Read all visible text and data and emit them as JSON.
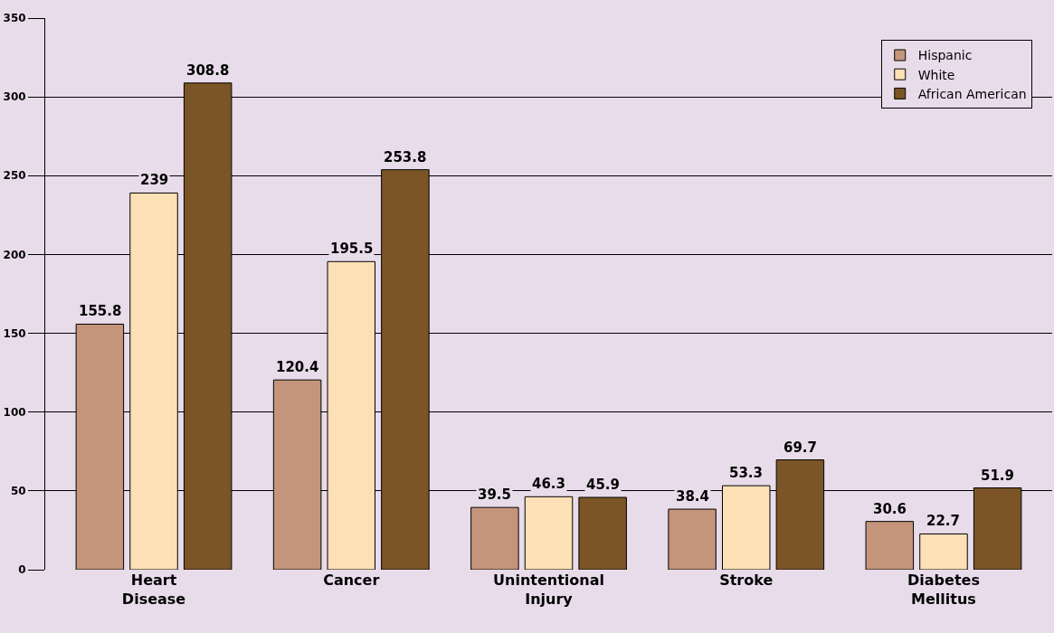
{
  "chart_data": {
    "type": "bar",
    "categories": [
      "Heart\nDisease",
      "Cancer",
      "Unintentional\nInjury",
      "Stroke",
      "Diabetes\nMellitus"
    ],
    "series": [
      {
        "name": "Hispanic",
        "color": "#c4957a",
        "values": [
          155.8,
          120.4,
          39.5,
          38.4,
          30.6
        ]
      },
      {
        "name": "White",
        "color": "#fde0b6",
        "values": [
          239,
          195.5,
          46.3,
          53.3,
          22.7
        ]
      },
      {
        "name": "African American",
        "color": "#7b5527",
        "values": [
          308.8,
          253.8,
          45.9,
          69.7,
          51.9
        ]
      }
    ],
    "ylim": [
      0,
      350
    ],
    "yticks": [
      0,
      50,
      100,
      150,
      200,
      250,
      300,
      350
    ],
    "grid": "y",
    "legend": "top right",
    "data_labels": true
  }
}
